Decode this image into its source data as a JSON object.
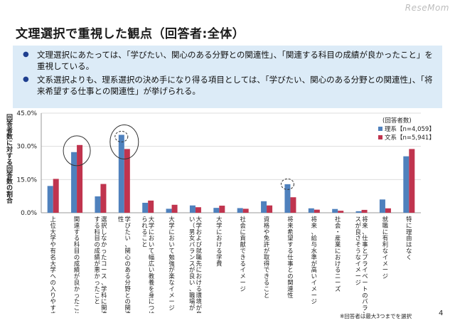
{
  "header": {
    "title": "文理選択で重視した観点（回答者:全体）",
    "logo": "ReseMom"
  },
  "bullets": [
    "文理選択にあたっては、「学びたい、関心のある分野との関連性」、「関連する科目の成績が良かったこと」を重視している。",
    "文系選択よりも、理系選択の決め手になり得る項目としては、「学びたい、関心のある分野との関連性」、「将来希望する仕事との関連性」が挙げられる。"
  ],
  "footer": {
    "note": "※回答者は最大3つまでを選択",
    "page": "4"
  },
  "colors": {
    "rikei": "#4f81bd",
    "bunkei": "#c0344e",
    "axis": "#999999",
    "circle": "#333333"
  },
  "chart_data": {
    "type": "bar",
    "ylabel": "回答者数に対する回答数の割合",
    "ylim": [
      0,
      45
    ],
    "yticks": [
      "0.0%",
      "15.0%",
      "30.0%",
      "45.0%"
    ],
    "legend_title": "(回答者数)",
    "legend_position": "top-right",
    "categories": [
      "上位大学や有名大学への入りやすさ",
      "関連する科目の成績が良かったこと",
      "選択しなかったコース、学科に関連する科目の成績が悪かったこと",
      "学びたい、関心のある分野との関連性",
      "大学において幅広い教養を身につけられること",
      "大学において勉強が楽なイメージ",
      "大学および就職先における環境が良い（男女バランスが良い、職場が…",
      "大学における学費",
      "社会に貢献できるイメージ",
      "資格や免許が取得できること",
      "将来希望する仕事との関連性",
      "将来、給与水準が高いイメージ",
      "社会・産業におけるニーズ",
      "将来、仕事とプライベートのバランスが良さそうなイメージ",
      "就職に有利なイメージ",
      "特に理由はなく"
    ],
    "series": [
      {
        "name": "理系",
        "n_label": "【n=4,059】",
        "values": [
          12.1,
          27.4,
          7.4,
          35.2,
          4.5,
          1.8,
          3.3,
          2.2,
          2.1,
          5.2,
          12.9,
          2.0,
          1.7,
          0.7,
          6.0,
          25.5
        ]
      },
      {
        "name": "文系",
        "n_label": "【n=5,941】",
        "values": [
          15.3,
          30.6,
          13.0,
          28.8,
          5.5,
          3.6,
          2.5,
          3.2,
          1.8,
          3.3,
          7.0,
          1.4,
          0.9,
          1.3,
          2.0,
          28.8
        ]
      }
    ]
  }
}
